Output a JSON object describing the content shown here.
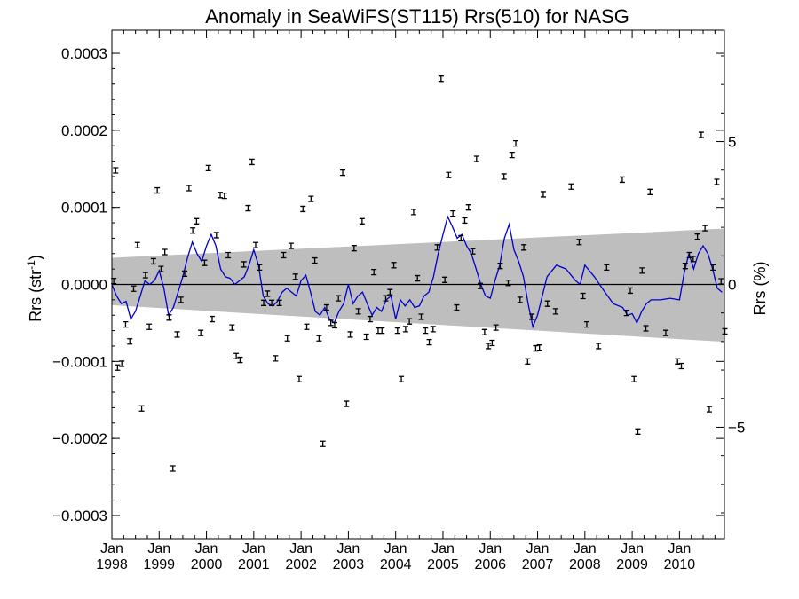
{
  "chart_data": {
    "type": "scatter",
    "title": "Anomaly in SeaWiFS(ST115) Rrs(510) for NASG",
    "ylabel_main": "Rrs (str",
    "ylabel_sup": "-1",
    "ylabel_close": ")",
    "y2label": "Rrs (%)",
    "xlim": [
      1998.0,
      2010.95
    ],
    "ylim": [
      -0.00033,
      0.00033
    ],
    "y2lim": [
      -8.9,
      8.9
    ],
    "yticks": [
      {
        "value": 0.0003,
        "label": "0.0003"
      },
      {
        "value": 0.0002,
        "label": "0.0002"
      },
      {
        "value": 0.0001,
        "label": "0.0001"
      },
      {
        "value": 0.0,
        "label": "0.0000"
      },
      {
        "value": -0.0001,
        "label": "−0.0001"
      },
      {
        "value": -0.0002,
        "label": "−0.0002"
      },
      {
        "value": -0.0003,
        "label": "−0.0003"
      }
    ],
    "y2ticks": [
      {
        "value": 5,
        "label": "5"
      },
      {
        "value": 0,
        "label": "0"
      },
      {
        "value": -5,
        "label": "−5"
      }
    ],
    "xticks": [
      {
        "value": 1998,
        "month": "Jan",
        "year": "1998"
      },
      {
        "value": 1999,
        "month": "Jan",
        "year": "1999"
      },
      {
        "value": 2000,
        "month": "Jan",
        "year": "2000"
      },
      {
        "value": 2001,
        "month": "Jan",
        "year": "2001"
      },
      {
        "value": 2002,
        "month": "Jan",
        "year": "2002"
      },
      {
        "value": 2003,
        "month": "Jan",
        "year": "2003"
      },
      {
        "value": 2004,
        "month": "Jan",
        "year": "2004"
      },
      {
        "value": 2005,
        "month": "Jan",
        "year": "2005"
      },
      {
        "value": 2006,
        "month": "Jan",
        "year": "2006"
      },
      {
        "value": 2007,
        "month": "Jan",
        "year": "2007"
      },
      {
        "value": 2008,
        "month": "Jan",
        "year": "2008"
      },
      {
        "value": 2009,
        "month": "Jan",
        "year": "2009"
      },
      {
        "value": 2010,
        "month": "Jan",
        "year": "2010"
      }
    ],
    "grid": false,
    "colors": {
      "points": "#000000",
      "smooth_line": "#0000cc",
      "band": "#bebebe",
      "zero_line": "#000000"
    },
    "band": {
      "x": [
        1998.0,
        2010.95
      ],
      "upper": [
        3.45e-05,
        7.25e-05
      ],
      "lower": [
        -2.7e-05,
        -7.45e-05
      ]
    },
    "points": [
      {
        "x": 1998.04,
        "y": 4.5e-06
      },
      {
        "x": 1998.08,
        "y": 0.000148
      },
      {
        "x": 1998.12,
        "y": -0.000108
      },
      {
        "x": 1998.21,
        "y": -0.000103
      },
      {
        "x": 1998.29,
        "y": -5.2e-05
      },
      {
        "x": 1998.38,
        "y": -7.4e-05
      },
      {
        "x": 1998.46,
        "y": -5.5e-06
      },
      {
        "x": 1998.54,
        "y": 5.1e-05
      },
      {
        "x": 1998.63,
        "y": -0.000161
      },
      {
        "x": 1998.71,
        "y": 1.2e-05
      },
      {
        "x": 1998.79,
        "y": -5.5e-05
      },
      {
        "x": 1998.88,
        "y": 3e-05
      },
      {
        "x": 1998.96,
        "y": 0.000122
      },
      {
        "x": 1999.04,
        "y": 2e-05
      },
      {
        "x": 1999.12,
        "y": 4.2e-05
      },
      {
        "x": 1999.21,
        "y": -4.3e-05
      },
      {
        "x": 1999.29,
        "y": -0.000239
      },
      {
        "x": 1999.38,
        "y": -6.5e-05
      },
      {
        "x": 1999.46,
        "y": -2e-05
      },
      {
        "x": 1999.54,
        "y": 1.4e-05
      },
      {
        "x": 1999.63,
        "y": 0.000125
      },
      {
        "x": 1999.71,
        "y": 7e-05
      },
      {
        "x": 1999.79,
        "y": 8.2e-05
      },
      {
        "x": 1999.88,
        "y": -6.3e-05
      },
      {
        "x": 1999.96,
        "y": 2.8e-05
      },
      {
        "x": 2000.04,
        "y": 0.000151
      },
      {
        "x": 2000.12,
        "y": -4.5e-05
      },
      {
        "x": 2000.21,
        "y": 6.4e-05
      },
      {
        "x": 2000.29,
        "y": 0.000116
      },
      {
        "x": 2000.38,
        "y": 0.000115
      },
      {
        "x": 2000.46,
        "y": 3.8e-05
      },
      {
        "x": 2000.54,
        "y": -5.6e-05
      },
      {
        "x": 2000.63,
        "y": -9.3e-05
      },
      {
        "x": 2000.71,
        "y": -9.8e-05
      },
      {
        "x": 2000.79,
        "y": 2.6e-05
      },
      {
        "x": 2000.88,
        "y": 9.9e-05
      },
      {
        "x": 2000.96,
        "y": 0.000159
      },
      {
        "x": 2001.04,
        "y": 5.1e-05
      },
      {
        "x": 2001.12,
        "y": 2.2e-05
      },
      {
        "x": 2001.21,
        "y": -2.4e-05
      },
      {
        "x": 2001.29,
        "y": -1.2e-05
      },
      {
        "x": 2001.38,
        "y": -2.4e-05
      },
      {
        "x": 2001.46,
        "y": -9.6e-05
      },
      {
        "x": 2001.54,
        "y": -2.4e-05
      },
      {
        "x": 2001.63,
        "y": 3.8e-05
      },
      {
        "x": 2001.71,
        "y": -7e-05
      },
      {
        "x": 2001.79,
        "y": 5e-05
      },
      {
        "x": 2001.88,
        "y": 1e-05
      },
      {
        "x": 2001.96,
        "y": -0.000123
      },
      {
        "x": 2002.04,
        "y": 9.8e-05
      },
      {
        "x": 2002.12,
        "y": -5.5e-05
      },
      {
        "x": 2002.21,
        "y": 0.000111
      },
      {
        "x": 2002.29,
        "y": 3.1e-05
      },
      {
        "x": 2002.38,
        "y": -7e-05
      },
      {
        "x": 2002.46,
        "y": -0.000207
      },
      {
        "x": 2002.54,
        "y": -3e-05
      },
      {
        "x": 2002.63,
        "y": -5e-05
      },
      {
        "x": 2002.71,
        "y": -5.3e-05
      },
      {
        "x": 2002.79,
        "y": -1.8e-05
      },
      {
        "x": 2002.88,
        "y": 0.000145
      },
      {
        "x": 2002.96,
        "y": -0.000155
      },
      {
        "x": 2003.04,
        "y": -6.5e-05
      },
      {
        "x": 2003.12,
        "y": 4.7e-05
      },
      {
        "x": 2003.21,
        "y": -3.5e-05
      },
      {
        "x": 2003.29,
        "y": 8.2e-05
      },
      {
        "x": 2003.38,
        "y": -6.8e-05
      },
      {
        "x": 2003.46,
        "y": -4.5e-05
      },
      {
        "x": 2003.54,
        "y": 1.6e-05
      },
      {
        "x": 2003.63,
        "y": -6e-05
      },
      {
        "x": 2003.71,
        "y": -6e-05
      },
      {
        "x": 2003.79,
        "y": -1.8e-05
      },
      {
        "x": 2003.88,
        "y": -1e-05
      },
      {
        "x": 2003.96,
        "y": 2.5e-05
      },
      {
        "x": 2004.04,
        "y": -6e-05
      },
      {
        "x": 2004.12,
        "y": -0.000123
      },
      {
        "x": 2004.21,
        "y": -5.8e-05
      },
      {
        "x": 2004.29,
        "y": -4.8e-05
      },
      {
        "x": 2004.38,
        "y": 9.4e-05
      },
      {
        "x": 2004.46,
        "y": 8e-06
      },
      {
        "x": 2004.54,
        "y": -4.2e-05
      },
      {
        "x": 2004.63,
        "y": -6e-05
      },
      {
        "x": 2004.71,
        "y": -7.5e-05
      },
      {
        "x": 2004.79,
        "y": -5.8e-05
      },
      {
        "x": 2004.88,
        "y": 4.8e-05
      },
      {
        "x": 2004.96,
        "y": 0.000267
      },
      {
        "x": 2005.04,
        "y": 6e-06
      },
      {
        "x": 2005.12,
        "y": 0.000142
      },
      {
        "x": 2005.21,
        "y": 9.2e-05
      },
      {
        "x": 2005.29,
        "y": -3e-05
      },
      {
        "x": 2005.38,
        "y": 6e-05
      },
      {
        "x": 2005.46,
        "y": 8.3e-05
      },
      {
        "x": 2005.54,
        "y": 0.0001
      },
      {
        "x": 2005.63,
        "y": 4.3e-05
      },
      {
        "x": 2005.71,
        "y": 0.000163
      },
      {
        "x": 2005.79,
        "y": -2e-06
      },
      {
        "x": 2005.88,
        "y": -6.2e-05
      },
      {
        "x": 2005.96,
        "y": -8e-05
      },
      {
        "x": 2006.04,
        "y": -7.6e-05
      },
      {
        "x": 2006.12,
        "y": -5.6e-05
      },
      {
        "x": 2006.21,
        "y": 2.4e-05
      },
      {
        "x": 2006.29,
        "y": 0.00014
      },
      {
        "x": 2006.38,
        "y": 2e-06
      },
      {
        "x": 2006.46,
        "y": 0.000168
      },
      {
        "x": 2006.54,
        "y": 0.000183
      },
      {
        "x": 2006.63,
        "y": -2e-05
      },
      {
        "x": 2006.71,
        "y": 4.8e-05
      },
      {
        "x": 2006.79,
        "y": -0.0001
      },
      {
        "x": 2006.88,
        "y": -4.2e-05
      },
      {
        "x": 2006.96,
        "y": -8.3e-05
      },
      {
        "x": 2007.04,
        "y": -8.2e-05
      },
      {
        "x": 2007.12,
        "y": 0.000117
      },
      {
        "x": 2007.21,
        "y": -2.5e-05
      },
      {
        "x": 2007.38,
        "y": -3.5e-05
      },
      {
        "x": 2007.71,
        "y": 0.000127
      },
      {
        "x": 2007.88,
        "y": 5.5e-05
      },
      {
        "x": 2007.96,
        "y": -1.5e-05
      },
      {
        "x": 2008.04,
        "y": -5.2e-05
      },
      {
        "x": 2008.29,
        "y": -8e-05
      },
      {
        "x": 2008.46,
        "y": 2.2e-05
      },
      {
        "x": 2008.79,
        "y": 0.000136
      },
      {
        "x": 2008.88,
        "y": -3.7e-05
      },
      {
        "x": 2008.96,
        "y": -8e-06
      },
      {
        "x": 2009.04,
        "y": -0.000123
      },
      {
        "x": 2009.12,
        "y": -0.000191
      },
      {
        "x": 2009.21,
        "y": 1.8e-05
      },
      {
        "x": 2009.29,
        "y": -5.7e-05
      },
      {
        "x": 2009.38,
        "y": 0.00012
      },
      {
        "x": 2009.71,
        "y": -6.3e-05
      },
      {
        "x": 2009.96,
        "y": -0.0001
      },
      {
        "x": 2010.04,
        "y": -0.000106
      },
      {
        "x": 2010.12,
        "y": 2.4e-05
      },
      {
        "x": 2010.21,
        "y": 3.8e-05
      },
      {
        "x": 2010.29,
        "y": 3.3e-05
      },
      {
        "x": 2010.38,
        "y": 6.2e-05
      },
      {
        "x": 2010.46,
        "y": 0.000194
      },
      {
        "x": 2010.54,
        "y": 7.3e-05
      },
      {
        "x": 2010.63,
        "y": -0.000162
      },
      {
        "x": 2010.71,
        "y": 2.2e-05
      },
      {
        "x": 2010.79,
        "y": 0.000133
      },
      {
        "x": 2010.88,
        "y": 4e-06
      },
      {
        "x": 2010.96,
        "y": -6.1e-05
      }
    ],
    "smooth_line": {
      "x": [
        1998.0,
        1998.1,
        1998.2,
        1998.3,
        1998.4,
        1998.5,
        1998.6,
        1998.7,
        1998.8,
        1998.9,
        1999.0,
        1999.1,
        1999.2,
        1999.3,
        1999.4,
        1999.5,
        1999.6,
        1999.7,
        1999.8,
        1999.9,
        2000.0,
        2000.1,
        2000.2,
        2000.3,
        2000.4,
        2000.5,
        2000.6,
        2000.7,
        2000.8,
        2000.9,
        2001.0,
        2001.1,
        2001.2,
        2001.3,
        2001.4,
        2001.5,
        2001.6,
        2001.7,
        2001.8,
        2001.9,
        2002.0,
        2002.1,
        2002.2,
        2002.3,
        2002.4,
        2002.5,
        2002.6,
        2002.7,
        2002.8,
        2002.9,
        2003.0,
        2003.1,
        2003.2,
        2003.3,
        2003.4,
        2003.5,
        2003.6,
        2003.7,
        2003.8,
        2003.9,
        2004.0,
        2004.1,
        2004.2,
        2004.3,
        2004.4,
        2004.5,
        2004.6,
        2004.7,
        2004.8,
        2004.9,
        2005.0,
        2005.1,
        2005.2,
        2005.3,
        2005.4,
        2005.5,
        2005.6,
        2005.7,
        2005.8,
        2005.9,
        2006.0,
        2006.1,
        2006.2,
        2006.3,
        2006.4,
        2006.5,
        2006.6,
        2006.7,
        2006.8,
        2006.9,
        2007.0,
        2007.2,
        2007.4,
        2007.6,
        2007.8,
        2007.9,
        2008.0,
        2008.2,
        2008.4,
        2008.6,
        2008.8,
        2008.9,
        2009.0,
        2009.1,
        2009.2,
        2009.3,
        2009.4,
        2009.6,
        2009.8,
        2010.0,
        2010.1,
        2010.2,
        2010.3,
        2010.4,
        2010.5,
        2010.6,
        2010.7,
        2010.8,
        2010.9
      ],
      "y": [
        0.0,
        -1.5e-05,
        -2.5e-05,
        -2.2e-05,
        -4.5e-05,
        -3.5e-05,
        -1.5e-05,
        5e-06,
        0.0,
        5e-06,
        1.8e-05,
        -5e-06,
        -4e-05,
        -3e-05,
        -1e-05,
        1e-05,
        3.5e-05,
        5.5e-05,
        4e-05,
        3e-05,
        5e-05,
        6.5e-05,
        5e-05,
        2e-05,
        1e-05,
        8e-06,
        0.0,
        5e-06,
        1e-05,
        2.5e-05,
        4.5e-05,
        2.5e-05,
        -1.5e-05,
        -2.5e-05,
        -2.8e-05,
        -2.2e-05,
        -1e-05,
        -5e-06,
        -1e-05,
        -1.5e-05,
        5e-06,
        1.2e-05,
        -1e-05,
        -3.5e-05,
        -4e-05,
        -3e-05,
        -4.5e-05,
        -5e-05,
        -3.5e-05,
        -2.5e-05,
        0.0,
        -2.5e-05,
        -1.5e-05,
        -1e-05,
        -2.5e-05,
        -4e-05,
        -3e-05,
        -3.5e-05,
        -2e-05,
        -1.5e-05,
        -4.5e-05,
        -2e-05,
        -2.8e-05,
        -2e-05,
        -3e-05,
        -2.8e-05,
        -1.5e-05,
        -1e-05,
        1e-05,
        4e-05,
        6.5e-05,
        8.8e-05,
        7.5e-05,
        6e-05,
        6.5e-05,
        5e-05,
        4e-05,
        2e-05,
        0.0,
        -1.5e-05,
        -1.8e-05,
        5e-06,
        2.5e-05,
        6e-05,
        7.8e-05,
        4.5e-05,
        3e-05,
        1e-05,
        -2.5e-05,
        -5.5e-05,
        -4e-05,
        1e-05,
        2.5e-05,
        2e-05,
        5e-06,
        0.0,
        2.5e-05,
        1e-05,
        -8e-06,
        -2.5e-05,
        -3e-05,
        -4e-05,
        -3.8e-05,
        -5e-05,
        -3.5e-05,
        -2.5e-05,
        -2e-05,
        -2e-05,
        -1.8e-05,
        -2e-05,
        1.5e-05,
        4e-05,
        2e-05,
        4e-05,
        5e-05,
        4e-05,
        2e-05,
        -5e-06,
        -1e-05
      ]
    }
  }
}
